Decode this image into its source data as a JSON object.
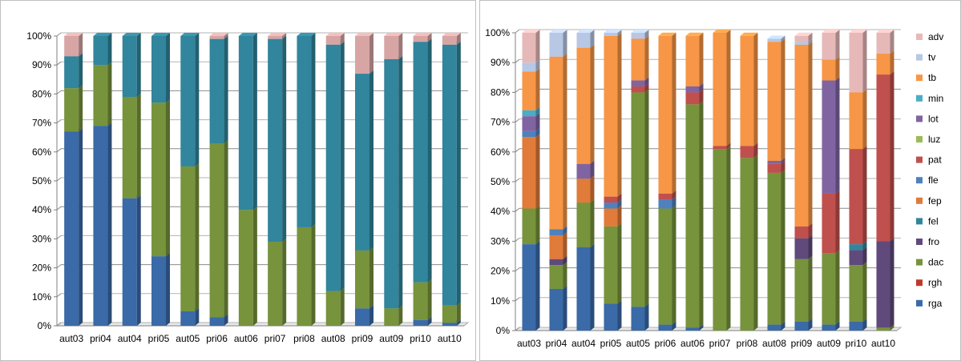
{
  "chart_data": [
    {
      "type": "bar",
      "stacked": true,
      "normalized": true,
      "categories": [
        "aut03",
        "pri04",
        "aut04",
        "pri05",
        "aut05",
        "pri06",
        "aut06",
        "pri07",
        "pri08",
        "aut08",
        "pri09",
        "aut09",
        "pri10",
        "aut10"
      ],
      "yticks": [
        "0%",
        "10%",
        "20%",
        "30%",
        "40%",
        "50%",
        "60%",
        "70%",
        "80%",
        "90%",
        "100%"
      ],
      "ylim": [
        0,
        100
      ],
      "grid": true,
      "legend": "none",
      "series": [
        {
          "color": "#3a6aa7",
          "values": [
            67,
            69,
            44,
            24,
            5,
            3,
            0,
            0,
            0,
            0,
            6,
            0,
            2,
            1
          ]
        },
        {
          "color": "#77933c",
          "values": [
            15,
            21,
            35,
            53,
            50,
            60,
            40,
            29,
            34,
            12,
            20,
            6,
            13,
            6
          ]
        },
        {
          "color": "#31859c",
          "values": [
            11,
            10,
            21,
            23,
            45,
            36,
            60,
            70,
            66,
            85,
            61,
            86,
            83,
            90
          ]
        },
        {
          "color": "#d8a5a5",
          "values": [
            7,
            0,
            0,
            0,
            0,
            1,
            0,
            1,
            0,
            3,
            13,
            8,
            2,
            3
          ]
        }
      ]
    },
    {
      "type": "bar",
      "stacked": true,
      "normalized": true,
      "categories": [
        "aut03",
        "pri04",
        "aut04",
        "pri05",
        "aut05",
        "pri06",
        "aut06",
        "pri07",
        "pri08",
        "aut08",
        "pri09",
        "aut09",
        "pri10",
        "aut10"
      ],
      "yticks": [
        "0%",
        "10%",
        "20%",
        "30%",
        "40%",
        "50%",
        "60%",
        "70%",
        "80%",
        "90%",
        "100%"
      ],
      "ylim": [
        0,
        100
      ],
      "grid": true,
      "legend": "right",
      "series": [
        {
          "name": "rga",
          "color": "#3a6aa7",
          "values": [
            29,
            14,
            28,
            9,
            8,
            2,
            1,
            0,
            0,
            2,
            3,
            2,
            3,
            0
          ]
        },
        {
          "name": "rgh",
          "color": "#c0392b",
          "values": [
            0,
            0,
            0,
            0,
            0,
            0,
            0,
            0,
            0,
            0,
            0,
            0,
            0,
            0
          ]
        },
        {
          "name": "dac",
          "color": "#77933c",
          "values": [
            12,
            8,
            15,
            26,
            72,
            39,
            75,
            61,
            58,
            51,
            21,
            24,
            19,
            1
          ]
        },
        {
          "name": "fro",
          "color": "#604a7b",
          "values": [
            0,
            2,
            0,
            0,
            0,
            0,
            0,
            0,
            0,
            0,
            7,
            0,
            5,
            29
          ]
        },
        {
          "name": "fel",
          "color": "#31859c",
          "values": [
            0,
            0,
            0,
            0,
            0,
            0,
            0,
            0,
            0,
            0,
            0,
            0,
            2,
            0
          ]
        },
        {
          "name": "fep",
          "color": "#e07b39",
          "values": [
            24,
            8,
            8,
            6,
            0,
            0,
            0,
            0,
            0,
            0,
            0,
            0,
            0,
            0
          ]
        },
        {
          "name": "fle",
          "color": "#4f81bd",
          "values": [
            2,
            2,
            0,
            2,
            0,
            3,
            0,
            0,
            0,
            0,
            0,
            0,
            0,
            0
          ]
        },
        {
          "name": "pat",
          "color": "#c0504d",
          "values": [
            0,
            0,
            0,
            2,
            2,
            2,
            4,
            1,
            4,
            3,
            4,
            20,
            32,
            56
          ]
        },
        {
          "name": "luz",
          "color": "#9bbb59",
          "values": [
            0,
            0,
            0,
            0,
            0,
            0,
            0,
            0,
            0,
            0,
            0,
            0,
            0,
            0
          ]
        },
        {
          "name": "lot",
          "color": "#8064a2",
          "values": [
            5,
            0,
            5,
            0,
            2,
            0,
            2,
            0,
            0,
            1,
            0,
            38,
            0,
            0
          ]
        },
        {
          "name": "min",
          "color": "#4bacc6",
          "values": [
            2,
            0,
            0,
            0,
            0,
            0,
            0,
            0,
            0,
            0,
            0,
            0,
            0,
            0
          ]
        },
        {
          "name": "tb",
          "color": "#f79646",
          "values": [
            13,
            58,
            39,
            54,
            14,
            53,
            17,
            38,
            37,
            40,
            61,
            7,
            19,
            7
          ]
        },
        {
          "name": "tv",
          "color": "#b7c7e4",
          "values": [
            3,
            8,
            5,
            1,
            2,
            0,
            0,
            0,
            0,
            1,
            1,
            0,
            0,
            0
          ]
        },
        {
          "name": "adv",
          "color": "#e6b9b8",
          "values": [
            10,
            0,
            0,
            0,
            0,
            0,
            0,
            0,
            0,
            0,
            2,
            9,
            20,
            7
          ]
        }
      ]
    }
  ]
}
